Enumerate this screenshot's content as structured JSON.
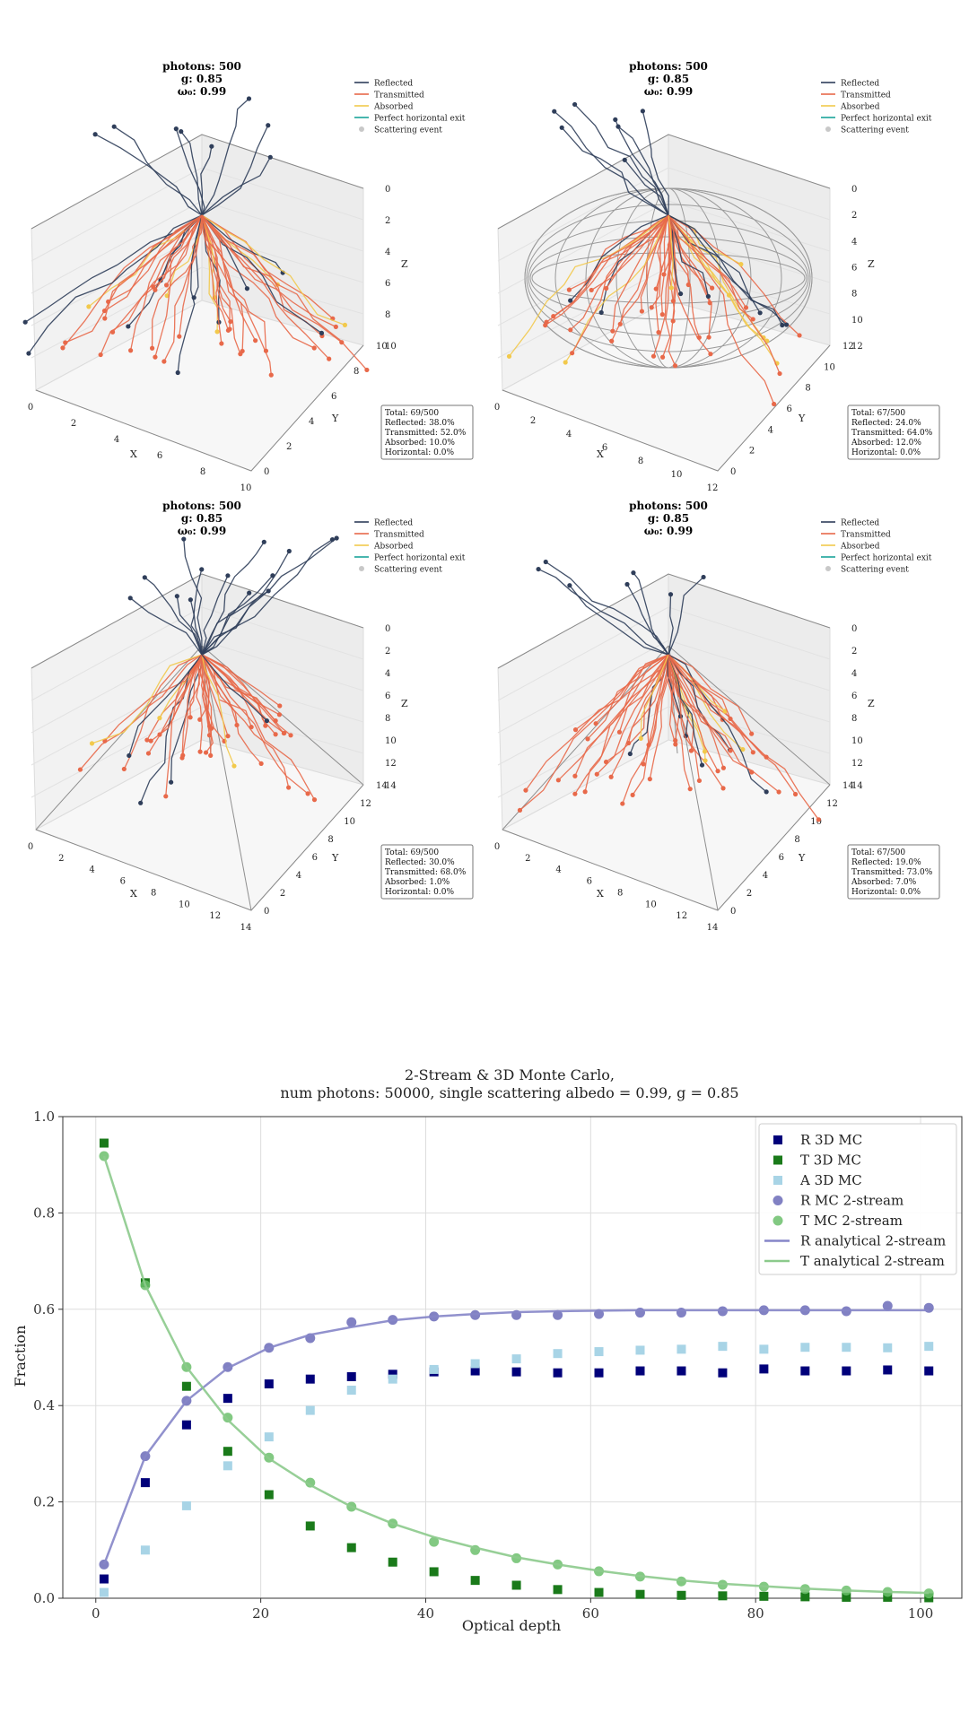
{
  "colors": {
    "reflected": "#2f3e5a",
    "transmitted": "#e8694a",
    "absorbed": "#f2c94c",
    "horizontal": "#1aa39a",
    "scatter": "#c8c8c8",
    "box_edge": "#8a8a8a",
    "pane": "#f2f2f2",
    "r3d": "#00007a",
    "t3d": "#1a7a1a",
    "a3d": "#a8d4e6",
    "r2s": "#6b6bb8",
    "t2s": "#6cbf6c",
    "r_line": "#8585c8",
    "t_line": "#8cca8c"
  },
  "legend_labels": [
    "Reflected",
    "Transmitted",
    "Absorbed",
    "Perfect horizontal exit",
    "Scattering event"
  ],
  "axis_letters": {
    "x": "X",
    "y": "Y",
    "z": "Z"
  },
  "panels": [
    {
      "title": [
        "photons: 500",
        "g: 0.85",
        "ω₀: 0.99"
      ],
      "stats": [
        "Total: 69/500",
        "Reflected: 38.0%",
        "Transmitted: 52.0%",
        "Absorbed: 10.0%",
        "Horizontal: 0.0%"
      ],
      "x_ticks": [
        "0",
        "2",
        "4",
        "6",
        "8",
        "10"
      ],
      "y_ticks": [
        "0",
        "2",
        "4",
        "6",
        "8",
        "10"
      ],
      "z_ticks": [
        "0",
        "2",
        "4",
        "6",
        "8",
        "10"
      ]
    },
    {
      "title": [
        "photons: 500",
        "g: 0.85",
        "ω₀: 0.99"
      ],
      "stats": [
        "Total: 67/500",
        "Reflected: 24.0%",
        "Transmitted: 64.0%",
        "Absorbed: 12.0%",
        "Horizontal: 0.0%"
      ],
      "x_ticks": [
        "0",
        "2",
        "4",
        "6",
        "8",
        "10",
        "12"
      ],
      "y_ticks": [
        "0",
        "2",
        "4",
        "6",
        "8",
        "10",
        "12"
      ],
      "z_ticks": [
        "0",
        "2",
        "4",
        "6",
        "8",
        "10",
        "12"
      ]
    },
    {
      "title": [
        "photons: 500",
        "g: 0.85",
        "ω₀: 0.99"
      ],
      "stats": [
        "Total: 69/500",
        "Reflected: 30.0%",
        "Transmitted: 68.0%",
        "Absorbed: 1.0%",
        "Horizontal: 0.0%"
      ],
      "x_ticks": [
        "0",
        "2",
        "4",
        "6",
        "8",
        "10",
        "12",
        "14"
      ],
      "y_ticks": [
        "0",
        "2",
        "4",
        "6",
        "8",
        "10",
        "12",
        "14"
      ],
      "z_ticks": [
        "0",
        "2",
        "4",
        "6",
        "8",
        "10",
        "12",
        "14"
      ]
    },
    {
      "title": [
        "photons: 500",
        "g: 0.85",
        "ω₀: 0.99"
      ],
      "stats": [
        "Total: 67/500",
        "Reflected: 19.0%",
        "Transmitted: 73.0%",
        "Absorbed: 7.0%",
        "Horizontal: 0.0%"
      ],
      "x_ticks": [
        "0",
        "2",
        "4",
        "6",
        "8",
        "10",
        "12",
        "14"
      ],
      "y_ticks": [
        "0",
        "2",
        "4",
        "6",
        "8",
        "10",
        "12",
        "14"
      ],
      "z_ticks": [
        "0",
        "2",
        "4",
        "6",
        "8",
        "10",
        "12",
        "14"
      ]
    }
  ],
  "chart_data": {
    "type": "scatter",
    "title": "2-Stream & 3D Monte Carlo,",
    "subtitle": "num photons: 50000, single scattering albedo = 0.99, g = 0.85",
    "xlabel": "Optical depth",
    "ylabel": "Fraction",
    "xlim": [
      -4,
      105
    ],
    "ylim": [
      0,
      1.0
    ],
    "x_ticks": [
      0,
      20,
      40,
      60,
      80,
      100
    ],
    "y_ticks": [
      0.0,
      0.2,
      0.4,
      0.6,
      0.8,
      1.0
    ],
    "x_tick_labels": [
      "0",
      "20",
      "40",
      "60",
      "80",
      "100"
    ],
    "y_tick_labels": [
      "0.0",
      "0.2",
      "0.4",
      "0.6",
      "0.8",
      "1.0"
    ],
    "grid": true,
    "legend_position": "top-right",
    "x": [
      1,
      6,
      11,
      16,
      21,
      26,
      31,
      36,
      41,
      46,
      51,
      56,
      61,
      66,
      71,
      76,
      81,
      86,
      91,
      96,
      101
    ],
    "series": [
      {
        "name": "R 3D MC",
        "marker": "square",
        "color_key": "r3d",
        "values": [
          0.04,
          0.24,
          0.36,
          0.415,
          0.445,
          0.455,
          0.46,
          0.465,
          0.47,
          0.472,
          0.47,
          0.468,
          0.468,
          0.472,
          0.472,
          0.468,
          0.476,
          0.472,
          0.472,
          0.474,
          0.472
        ]
      },
      {
        "name": "T 3D MC",
        "marker": "square",
        "color_key": "t3d",
        "values": [
          0.945,
          0.655,
          0.44,
          0.305,
          0.215,
          0.15,
          0.105,
          0.075,
          0.055,
          0.037,
          0.027,
          0.018,
          0.012,
          0.008,
          0.006,
          0.005,
          0.004,
          0.003,
          0.002,
          0.002,
          0.001
        ]
      },
      {
        "name": "A 3D MC",
        "marker": "square",
        "color_key": "a3d",
        "values": [
          0.012,
          0.1,
          0.192,
          0.275,
          0.335,
          0.39,
          0.432,
          0.455,
          0.475,
          0.487,
          0.497,
          0.508,
          0.512,
          0.515,
          0.517,
          0.523,
          0.517,
          0.521,
          0.521,
          0.52,
          0.523
        ]
      },
      {
        "name": "R MC 2-stream",
        "marker": "circle",
        "color_key": "r2s",
        "values": [
          0.07,
          0.295,
          0.41,
          0.48,
          0.52,
          0.54,
          0.573,
          0.578,
          0.585,
          0.588,
          0.588,
          0.588,
          0.59,
          0.593,
          0.593,
          0.596,
          0.598,
          0.598,
          0.596,
          0.607,
          0.603
        ]
      },
      {
        "name": "T MC 2-stream",
        "marker": "circle",
        "color_key": "t2s",
        "values": [
          0.918,
          0.65,
          0.48,
          0.375,
          0.292,
          0.24,
          0.19,
          0.155,
          0.117,
          0.1,
          0.083,
          0.07,
          0.056,
          0.045,
          0.035,
          0.028,
          0.024,
          0.019,
          0.016,
          0.013,
          0.01
        ]
      },
      {
        "name": "R analytical 2-stream",
        "marker": "line",
        "color_key": "r_line",
        "values": [
          0.07,
          0.295,
          0.41,
          0.478,
          0.52,
          0.547,
          0.563,
          0.577,
          0.585,
          0.59,
          0.594,
          0.596,
          0.597,
          0.598,
          0.598,
          0.598,
          0.598,
          0.598,
          0.598,
          0.598,
          0.598
        ]
      },
      {
        "name": "T analytical 2-stream",
        "marker": "line",
        "color_key": "t_line",
        "values": [
          0.918,
          0.65,
          0.48,
          0.37,
          0.29,
          0.235,
          0.19,
          0.155,
          0.127,
          0.105,
          0.085,
          0.07,
          0.057,
          0.046,
          0.037,
          0.03,
          0.025,
          0.02,
          0.016,
          0.013,
          0.011
        ]
      }
    ]
  }
}
